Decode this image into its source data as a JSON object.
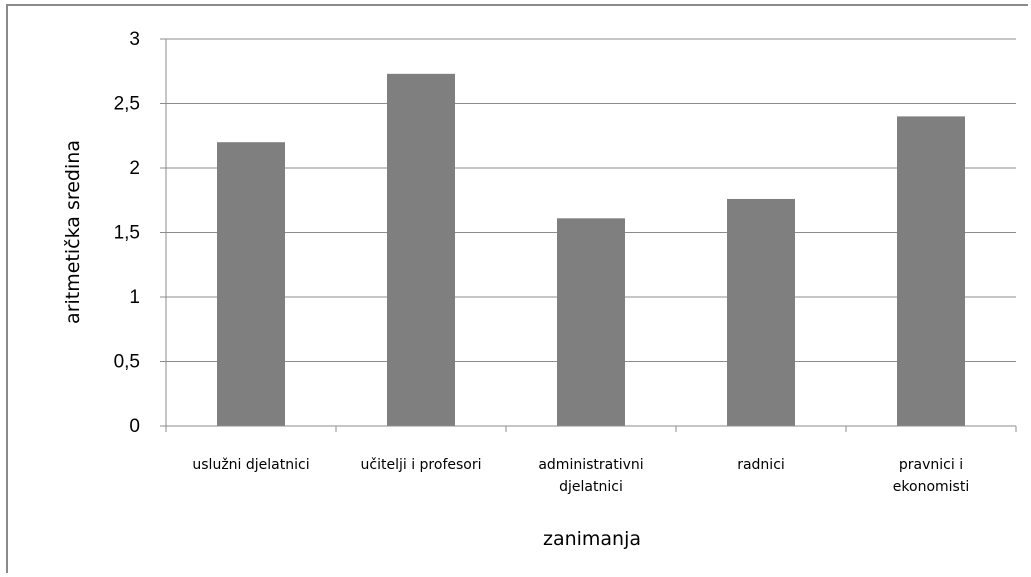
{
  "chart_data": {
    "type": "bar",
    "categories": [
      [
        "uslužni djelatnici"
      ],
      [
        "učitelji i profesori"
      ],
      [
        "administrativni",
        "djelatnici"
      ],
      [
        "radnici"
      ],
      [
        "pravnici i",
        "ekonomisti"
      ]
    ],
    "values": [
      2.2,
      2.73,
      1.61,
      1.76,
      2.4
    ],
    "xlabel": "zanimanja",
    "ylabel": "aritmetička sredina",
    "ylim": [
      0,
      3
    ],
    "yticks": [
      "0",
      "0,5",
      "1",
      "1,5",
      "2",
      "2,5",
      "3"
    ],
    "grid": true,
    "legend": "none",
    "bar_color": "#7f7f7f",
    "grid_color": "#8c8c8c"
  }
}
